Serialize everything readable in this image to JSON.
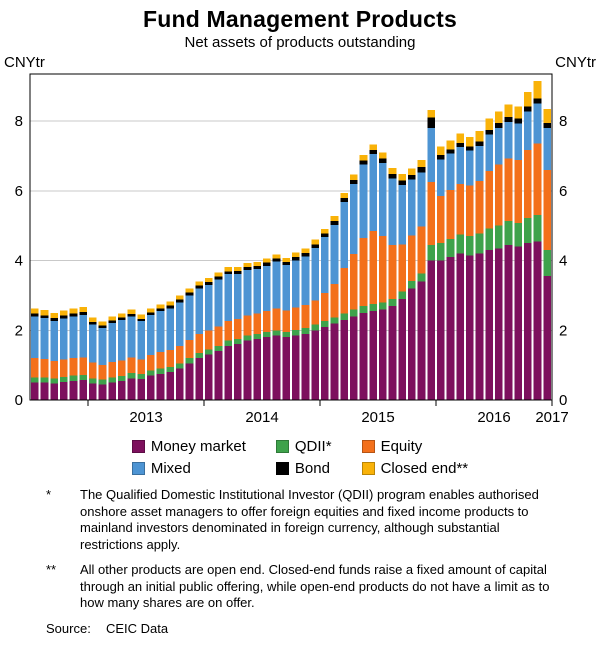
{
  "title": "Fund Management Products",
  "subtitle": "Net assets of products outstanding",
  "axis_unit_left": "CNYtr",
  "axis_unit_right": "CNYtr",
  "chart_data": {
    "type": "bar",
    "stacked": true,
    "title": "Fund Management Products",
    "subtitle": "Net assets of products outstanding",
    "ylabel": "CNYtr",
    "ylim": [
      0,
      9.35
    ],
    "yticks": [
      0,
      2,
      4,
      6,
      8
    ],
    "grid": true,
    "legend_position": "bottom",
    "xticks_labels": [
      "2013",
      "2014",
      "2015",
      "2016",
      "2017"
    ],
    "x": [
      "2012-07",
      "2012-08",
      "2012-09",
      "2012-10",
      "2012-11",
      "2012-12",
      "2013-01",
      "2013-02",
      "2013-03",
      "2013-04",
      "2013-05",
      "2013-06",
      "2013-07",
      "2013-08",
      "2013-09",
      "2013-10",
      "2013-11",
      "2013-12",
      "2014-01",
      "2014-02",
      "2014-03",
      "2014-04",
      "2014-05",
      "2014-06",
      "2014-07",
      "2014-08",
      "2014-09",
      "2014-10",
      "2014-11",
      "2014-12",
      "2015-01",
      "2015-02",
      "2015-03",
      "2015-04",
      "2015-05",
      "2015-06",
      "2015-07",
      "2015-08",
      "2015-09",
      "2015-10",
      "2015-11",
      "2015-12",
      "2016-01",
      "2016-02",
      "2016-03",
      "2016-04",
      "2016-05",
      "2016-06",
      "2016-07",
      "2016-08",
      "2016-09",
      "2016-10",
      "2016-11",
      "2016-12"
    ],
    "series": [
      {
        "name": "Money market",
        "color": "#7D105D",
        "values": [
          0.5,
          0.5,
          0.48,
          0.52,
          0.55,
          0.57,
          0.48,
          0.45,
          0.5,
          0.55,
          0.62,
          0.6,
          0.7,
          0.75,
          0.8,
          0.9,
          1.05,
          1.2,
          1.3,
          1.4,
          1.55,
          1.6,
          1.7,
          1.75,
          1.8,
          1.85,
          1.8,
          1.85,
          1.9,
          2.0,
          2.1,
          2.2,
          2.3,
          2.4,
          2.5,
          2.55,
          2.6,
          2.7,
          2.9,
          3.2,
          3.4,
          4.0,
          4.0,
          4.1,
          4.2,
          4.15,
          4.2,
          4.3,
          4.35,
          4.45,
          4.4,
          4.5,
          4.55,
          3.55
        ]
      },
      {
        "name": "QDII*",
        "color": "#3EA24B",
        "values": [
          0.15,
          0.15,
          0.14,
          0.14,
          0.15,
          0.15,
          0.14,
          0.14,
          0.14,
          0.14,
          0.15,
          0.14,
          0.14,
          0.15,
          0.15,
          0.15,
          0.15,
          0.15,
          0.15,
          0.15,
          0.15,
          0.15,
          0.15,
          0.15,
          0.15,
          0.15,
          0.15,
          0.16,
          0.16,
          0.16,
          0.17,
          0.17,
          0.18,
          0.19,
          0.2,
          0.2,
          0.2,
          0.2,
          0.21,
          0.22,
          0.23,
          0.45,
          0.5,
          0.52,
          0.55,
          0.55,
          0.58,
          0.62,
          0.65,
          0.68,
          0.68,
          0.72,
          0.75,
          0.75
        ]
      },
      {
        "name": "Equity",
        "color": "#F3701B",
        "values": [
          0.55,
          0.52,
          0.5,
          0.5,
          0.5,
          0.5,
          0.45,
          0.42,
          0.45,
          0.45,
          0.45,
          0.42,
          0.45,
          0.47,
          0.48,
          0.5,
          0.52,
          0.55,
          0.55,
          0.56,
          0.56,
          0.57,
          0.58,
          0.58,
          0.6,
          0.62,
          0.62,
          0.64,
          0.66,
          0.7,
          0.8,
          0.95,
          1.3,
          1.6,
          1.95,
          2.1,
          1.9,
          1.55,
          1.35,
          1.3,
          1.35,
          1.8,
          1.35,
          1.4,
          1.45,
          1.45,
          1.5,
          1.65,
          1.75,
          1.8,
          1.8,
          1.95,
          2.05,
          2.3
        ]
      },
      {
        "name": "Mixed",
        "color": "#4D94D3",
        "values": [
          1.2,
          1.18,
          1.15,
          1.18,
          1.2,
          1.22,
          1.1,
          1.05,
          1.12,
          1.15,
          1.18,
          1.1,
          1.15,
          1.18,
          1.2,
          1.25,
          1.28,
          1.3,
          1.3,
          1.35,
          1.35,
          1.3,
          1.3,
          1.28,
          1.3,
          1.35,
          1.3,
          1.35,
          1.4,
          1.5,
          1.6,
          1.7,
          1.9,
          2.0,
          2.1,
          2.2,
          2.1,
          1.9,
          1.7,
          1.6,
          1.55,
          1.55,
          1.05,
          1.05,
          1.05,
          1.0,
          1.0,
          1.05,
          1.05,
          1.05,
          1.05,
          1.1,
          1.15,
          1.2
        ]
      },
      {
        "name": "Bond",
        "color": "#000000",
        "values": [
          0.08,
          0.08,
          0.08,
          0.08,
          0.08,
          0.08,
          0.07,
          0.07,
          0.07,
          0.07,
          0.07,
          0.07,
          0.07,
          0.07,
          0.08,
          0.08,
          0.08,
          0.08,
          0.08,
          0.08,
          0.08,
          0.08,
          0.08,
          0.08,
          0.09,
          0.09,
          0.09,
          0.1,
          0.1,
          0.1,
          0.1,
          0.11,
          0.11,
          0.12,
          0.12,
          0.12,
          0.13,
          0.13,
          0.14,
          0.14,
          0.15,
          0.3,
          0.12,
          0.12,
          0.12,
          0.12,
          0.13,
          0.13,
          0.14,
          0.14,
          0.14,
          0.15,
          0.15,
          0.15
        ]
      },
      {
        "name": "Closed end**",
        "color": "#F9B208",
        "values": [
          0.15,
          0.15,
          0.14,
          0.14,
          0.15,
          0.15,
          0.13,
          0.12,
          0.12,
          0.12,
          0.12,
          0.12,
          0.12,
          0.12,
          0.12,
          0.12,
          0.12,
          0.12,
          0.12,
          0.12,
          0.12,
          0.12,
          0.12,
          0.12,
          0.12,
          0.12,
          0.12,
          0.13,
          0.13,
          0.14,
          0.14,
          0.15,
          0.15,
          0.16,
          0.16,
          0.16,
          0.17,
          0.17,
          0.18,
          0.18,
          0.2,
          0.22,
          0.25,
          0.26,
          0.28,
          0.28,
          0.3,
          0.32,
          0.34,
          0.35,
          0.35,
          0.42,
          0.5,
          0.4
        ]
      }
    ]
  },
  "footnotes": [
    {
      "marker": "*",
      "text": "The Qualified Domestic Institutional Investor (QDII) program enables authorised onshore asset managers to offer foreign equities and fixed income products to mainland investors denominated in foreign currency, although substantial restrictions apply."
    },
    {
      "marker": "**",
      "text": "All other products are open end. Closed-end funds raise a fixed amount of capital through an initial public offering, while open-end products do not have a limit as to how many shares are on offer."
    }
  ],
  "source": {
    "label": "Source:",
    "text": "CEIC Data"
  }
}
